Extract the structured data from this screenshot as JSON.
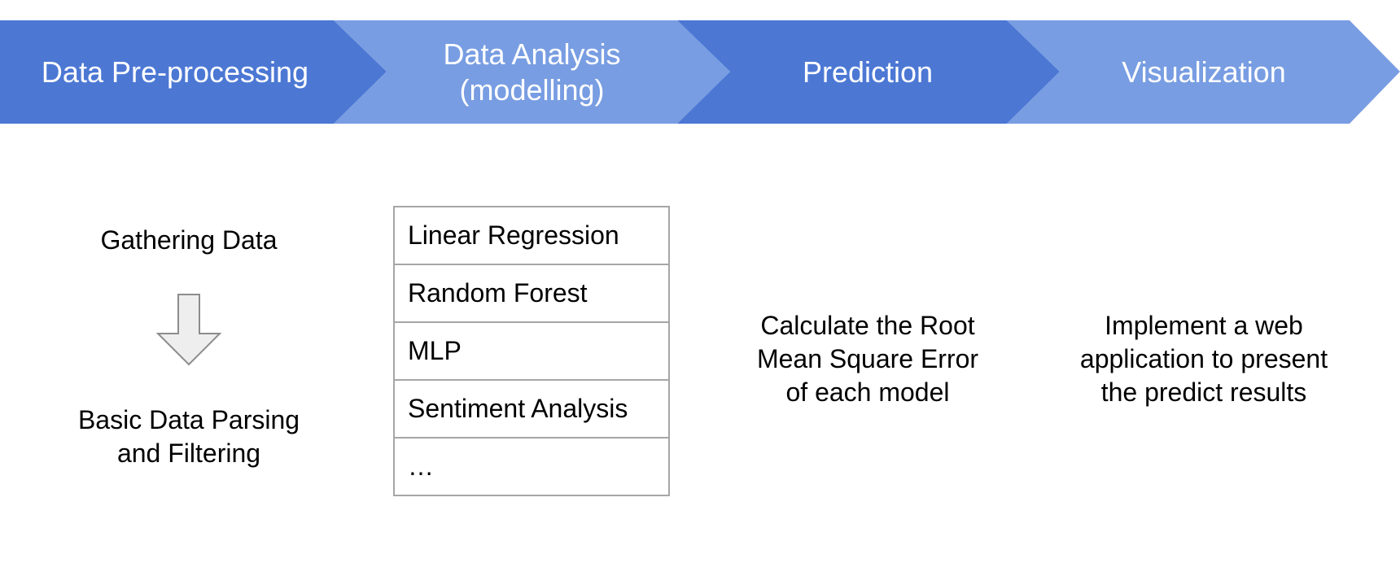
{
  "colors": {
    "stage_dark": "#4c78d4",
    "stage_light": "#789de2",
    "stage_text": "#ffffff",
    "arrow_fill": "#eeeeee",
    "arrow_stroke": "#8c8c8c",
    "table_border": "#a6a6a6"
  },
  "stages": [
    {
      "label": "Data Pre-processing",
      "color": "#4c78d4"
    },
    {
      "label": "Data Analysis\n(modelling)",
      "color": "#789de2"
    },
    {
      "label": "Prediction",
      "color": "#4c78d4"
    },
    {
      "label": "Visualization",
      "color": "#789de2"
    }
  ],
  "preprocessing": {
    "step_top": "Gathering Data",
    "arrow_icon": "down-arrow-icon",
    "step_bottom": "Basic Data Parsing\nand Filtering"
  },
  "models": [
    "Linear Regression",
    "Random Forest",
    "MLP",
    "Sentiment Analysis",
    "…"
  ],
  "prediction_text": "Calculate the Root\nMean Square Error\nof each model",
  "visualization_text": "Implement a web\napplication to present\nthe predict results"
}
